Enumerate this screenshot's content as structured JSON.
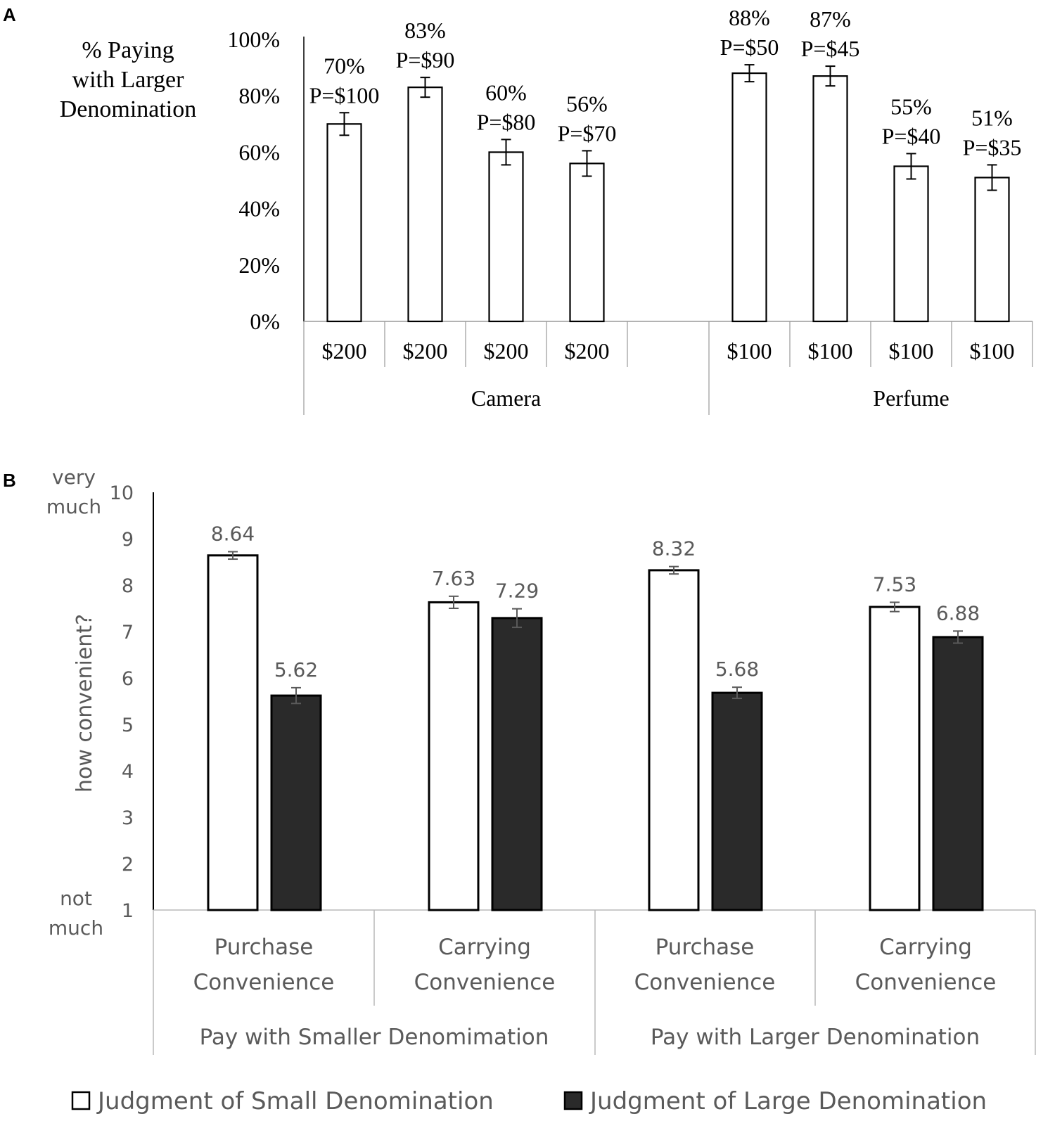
{
  "chart_data": [
    {
      "type": "bar",
      "panel_label": "A",
      "ylabel_lines": [
        "% Paying",
        "with Larger",
        "Denomination"
      ],
      "yticks": [
        "0%",
        "20%",
        "40%",
        "60%",
        "80%",
        "100%"
      ],
      "ylim": [
        0,
        100
      ],
      "groups": [
        {
          "name": "Camera",
          "bars": [
            {
              "category": "$200",
              "value": 70,
              "label": "70%",
              "price": "P=$100",
              "error": 4
            },
            {
              "category": "$200",
              "value": 83,
              "label": "83%",
              "price": "P=$90",
              "error": 3.5
            },
            {
              "category": "$200",
              "value": 60,
              "label": "60%",
              "price": "P=$80",
              "error": 4.5
            },
            {
              "category": "$200",
              "value": 56,
              "label": "56%",
              "price": "P=$70",
              "error": 4.5
            }
          ]
        },
        {
          "name": "Perfume",
          "bars": [
            {
              "category": "$100",
              "value": 88,
              "label": "88%",
              "price": "P=$50",
              "error": 3
            },
            {
              "category": "$100",
              "value": 87,
              "label": "87%",
              "price": "P=$45",
              "error": 3.5
            },
            {
              "category": "$100",
              "value": 55,
              "label": "55%",
              "price": "P=$40",
              "error": 4.5
            },
            {
              "category": "$100",
              "value": 51,
              "label": "51%",
              "price": "P=$35",
              "error": 4.5
            }
          ]
        }
      ]
    },
    {
      "type": "bar",
      "panel_label": "B",
      "ylabel": "how convenient?",
      "ytop_label_lines": [
        "very",
        "much"
      ],
      "ybottom_label_lines": [
        "not",
        "much"
      ],
      "yticks": [
        "1",
        "2",
        "3",
        "4",
        "5",
        "6",
        "7",
        "8",
        "9",
        "10"
      ],
      "ylim": [
        1,
        10
      ],
      "series": [
        {
          "name": "Judgment of Small Denomination",
          "fill": "#ffffff",
          "values": [
            8.64,
            7.63,
            8.32,
            7.53
          ],
          "labels": [
            "8.64",
            "7.63",
            "8.32",
            "7.53"
          ],
          "errors": [
            0.08,
            0.13,
            0.08,
            0.1
          ]
        },
        {
          "name": "Judgment of Large Denomination",
          "fill": "#2a2a2a",
          "values": [
            5.62,
            7.29,
            5.68,
            6.88
          ],
          "labels": [
            "5.62",
            "7.29",
            "5.68",
            "6.88"
          ],
          "errors": [
            0.17,
            0.2,
            0.12,
            0.13
          ]
        }
      ],
      "groups": [
        {
          "name": "Pay with Smaller Denomimation",
          "categories": [
            [
              "Purchase",
              "Convenience"
            ],
            [
              "Carrying",
              "Convenience"
            ]
          ]
        },
        {
          "name": "Pay with Larger Denomination",
          "categories": [
            [
              "Purchase",
              "Convenience"
            ],
            [
              "Carrying",
              "Convenience"
            ]
          ]
        }
      ]
    }
  ]
}
